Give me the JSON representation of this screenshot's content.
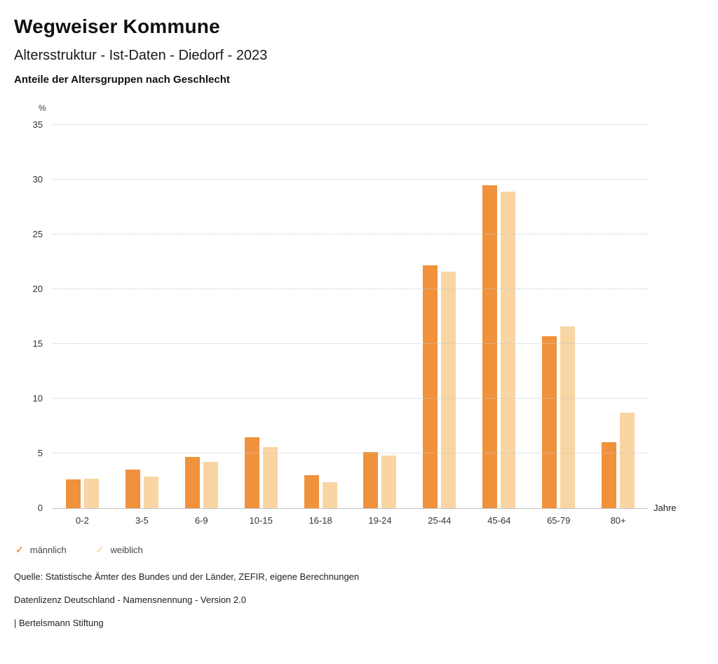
{
  "header": {
    "title": "Wegweiser Kommune",
    "subtitle": "Altersstruktur - Ist-Daten - Diedorf - 2023",
    "chart_title": "Anteile der Altersgruppen nach Geschlecht"
  },
  "chart_data": {
    "type": "bar",
    "title": "Anteile der Altersgruppen nach Geschlecht",
    "unit": "%",
    "xlabel": "Jahre",
    "ylim": [
      0,
      35
    ],
    "yticks": [
      0,
      5,
      10,
      15,
      20,
      25,
      30,
      35
    ],
    "grid": true,
    "legend_position": "bottom",
    "categories": [
      "0-2",
      "3-5",
      "6-9",
      "10-15",
      "16-18",
      "19-24",
      "25-44",
      "45-64",
      "65-79",
      "80+"
    ],
    "series": [
      {
        "name": "männlich",
        "color": "#F0913C",
        "values": [
          2.6,
          3.5,
          4.7,
          6.5,
          3.0,
          5.1,
          22.2,
          29.5,
          15.7,
          6.0
        ]
      },
      {
        "name": "weiblich",
        "color": "#F9D5A3",
        "values": [
          2.7,
          2.9,
          4.2,
          5.6,
          2.4,
          4.8,
          21.6,
          28.9,
          16.6,
          8.7
        ]
      }
    ]
  },
  "footer": {
    "source": "Quelle: Statistische Ämter des Bundes und der Länder, ZEFIR, eigene Berechnungen",
    "license": "Datenlizenz Deutschland - Namensnennung - Version 2.0",
    "attribution": "| Bertelsmann Stiftung"
  }
}
